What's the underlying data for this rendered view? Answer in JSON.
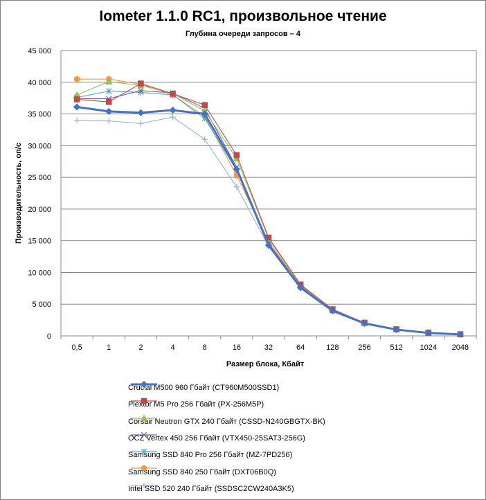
{
  "chart_data": {
    "type": "line",
    "title": "Iometer 1.1.0 RC1, произвольное чтение",
    "subtitle": "Глубина очереди запросов – 4",
    "xlabel": "Размер блока, Кбайт",
    "ylabel": "Производительность,  оп/с",
    "ylim": [
      0,
      45000
    ],
    "y_ticks": [
      "0",
      "5 000",
      "10 000",
      "15 000",
      "20 000",
      "25 000",
      "30 000",
      "35 000",
      "40 000",
      "45 000"
    ],
    "categories": [
      "0,5",
      "1",
      "2",
      "4",
      "8",
      "16",
      "32",
      "64",
      "128",
      "256",
      "512",
      "1024",
      "2048"
    ],
    "grid": "horizontal",
    "legend_position": "bottom",
    "series": [
      {
        "name": "Crucial M500 960 Гбайт (CT960M500SSD1)",
        "color": "#4472c4",
        "marker": "diamond",
        "values": [
          36100,
          35400,
          35200,
          35600,
          35000,
          26300,
          14300,
          7600,
          3950,
          1980,
          990,
          470,
          235
        ]
      },
      {
        "name": "Plextor M5 Pro 256 Гбайт (PX-256M5P)",
        "color": "#be4b48",
        "marker": "square",
        "values": [
          37300,
          36900,
          39800,
          38200,
          36400,
          28500,
          15500,
          8100,
          4200,
          2070,
          1040,
          500,
          250
        ]
      },
      {
        "name": "Corsair Neutron GTX 240 Гбайт (CSSD-N240GBGTX-BK)",
        "color": "#9bbb59",
        "marker": "triangle",
        "values": [
          38000,
          40100,
          39500,
          38200,
          35500,
          28000,
          15300,
          8000,
          4150,
          2050,
          1030,
          500,
          250
        ]
      },
      {
        "name": "OCZ Vertex  450 256 Гбайт (VTX450-25SAT3-256G)",
        "color": "#7e5ea1",
        "marker": "x",
        "values": [
          37400,
          37400,
          38700,
          38300,
          35900,
          26600,
          14600,
          7800,
          4000,
          2000,
          1000,
          480,
          240
        ]
      },
      {
        "name": "Samsung SSD 840 Pro 256 Гбайт (MZ-7PD256)",
        "color": "#4bacc6",
        "marker": "star",
        "values": [
          37600,
          38600,
          38400,
          38000,
          34300,
          26100,
          14500,
          7700,
          3980,
          1990,
          995,
          480,
          240
        ]
      },
      {
        "name": "Samsung SSD 840 250 Гбайт (DXT06B0Q)",
        "color": "#f79646",
        "marker": "circle",
        "values": [
          40500,
          40500,
          39700,
          38000,
          34600,
          25300,
          14900,
          7900,
          4100,
          2040,
          1020,
          490,
          245
        ]
      },
      {
        "name": "Intel SSD 520 240 Гбайт (SSDSC2CW240A3K5)",
        "color": "#95b3d7",
        "marker": "plus",
        "values": [
          34000,
          33900,
          33500,
          34500,
          31000,
          23500,
          14100,
          7500,
          3900,
          1960,
          985,
          470,
          235
        ]
      }
    ]
  }
}
